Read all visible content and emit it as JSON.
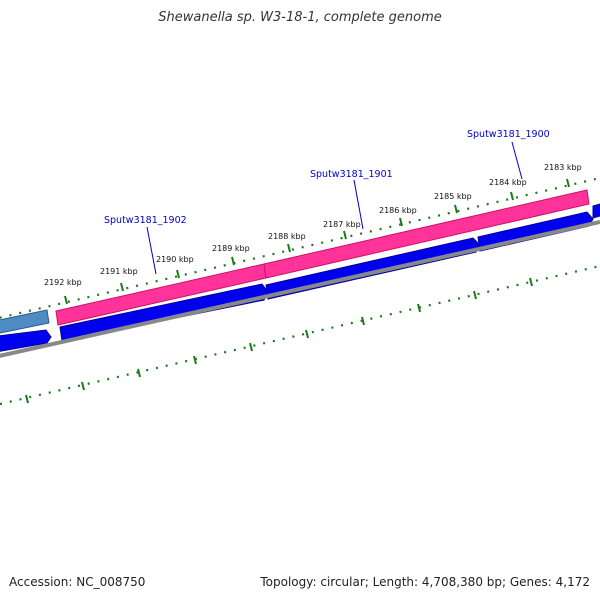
{
  "header": {
    "title": "Shewanella sp. W3-18-1, complete genome"
  },
  "footer": {
    "accession": "Accession: NC_008750",
    "summary": "Topology: circular; Length: 4,708,380 bp; Genes: 4,172"
  },
  "map": {
    "tick_labels": [
      "2192 kbp",
      "2191 kbp",
      "2190 kbp",
      "2189 kbp",
      "2188 kbp",
      "2187 kbp",
      "2186 kbp",
      "2185 kbp",
      "2184 kbp",
      "2183 kbp"
    ],
    "gene_labels": [
      "Sputw3181_1902",
      "Sputw3181_1901",
      "Sputw3181_1900"
    ],
    "colors": {
      "pink_feature": "#ff3399",
      "blue_arrow": "#0000ee",
      "steel_feature": "#4f8cc4",
      "backbone": "#888888",
      "ticks": "#1a7a1a",
      "gene_label": "#0000cc"
    }
  }
}
